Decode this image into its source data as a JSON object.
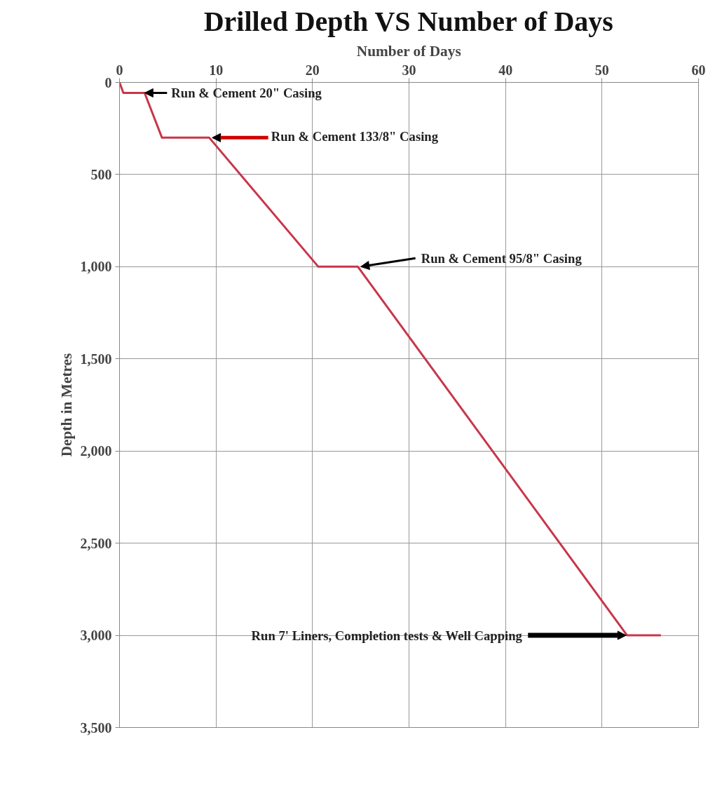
{
  "chart_data": {
    "type": "line",
    "title": "Drilled Depth VS Number of Days",
    "xlabel": "Number of Days",
    "ylabel": "Depth in Metres",
    "series": [
      {
        "color": "#c8364a",
        "x": [
          0,
          0.4,
          2.6,
          4.4,
          9.3,
          20.6,
          24.7,
          52.6,
          56.1
        ],
        "values": [
          0,
          57,
          57,
          300,
          300,
          1000,
          1000,
          3000,
          3000
        ]
      }
    ],
    "xlim": [
      0,
      60
    ],
    "xticks": [
      0,
      10,
      20,
      30,
      40,
      50,
      60
    ],
    "ylim": [
      3500,
      0
    ],
    "yticks": [
      0,
      500,
      {
        "value": 1000,
        "label": "1,000"
      },
      {
        "value": 1500,
        "label": "1,500"
      },
      {
        "value": 2000,
        "label": "2,000"
      },
      {
        "value": 2500,
        "label": "2,500"
      },
      {
        "value": 3000,
        "label": "3,000"
      },
      {
        "value": 3500,
        "label": "3,500"
      }
    ],
    "grid": true,
    "annotations": [
      {
        "text": "Run & Cement 20\" Casing",
        "x": 2.6,
        "y": 57
      },
      {
        "text": "Run & Cement 133/8\" Casing",
        "x": 9.6,
        "y": 300
      },
      {
        "text": "Run & Cement 95/8\" Casing",
        "x": 25,
        "y": 1000
      },
      {
        "text": "Run 7' Liners, Completion tests & Well Capping",
        "x": 52.5,
        "y": 3000
      }
    ]
  }
}
